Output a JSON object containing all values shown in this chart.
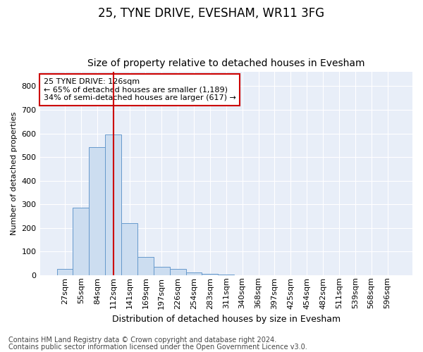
{
  "title1": "25, TYNE DRIVE, EVESHAM, WR11 3FG",
  "title2": "Size of property relative to detached houses in Evesham",
  "xlabel": "Distribution of detached houses by size in Evesham",
  "ylabel": "Number of detached properties",
  "bar_labels": [
    "27sqm",
    "55sqm",
    "84sqm",
    "112sqm",
    "141sqm",
    "169sqm",
    "197sqm",
    "226sqm",
    "254sqm",
    "283sqm",
    "311sqm",
    "340sqm",
    "368sqm",
    "397sqm",
    "425sqm",
    "454sqm",
    "482sqm",
    "511sqm",
    "539sqm",
    "568sqm",
    "596sqm"
  ],
  "bar_values": [
    25,
    285,
    543,
    597,
    220,
    78,
    35,
    25,
    12,
    6,
    3,
    0,
    0,
    0,
    0,
    0,
    0,
    0,
    0,
    0,
    0
  ],
  "bar_color": "#ccddf0",
  "bar_edgecolor": "#6699cc",
  "vline_index": 3.5,
  "annotation_text": "25 TYNE DRIVE: 126sqm\n← 65% of detached houses are smaller (1,189)\n34% of semi-detached houses are larger (617) →",
  "annotation_box_color": "#ffffff",
  "annotation_box_edgecolor": "#cc0000",
  "yticks": [
    0,
    100,
    200,
    300,
    400,
    500,
    600,
    700,
    800
  ],
  "ylim": [
    0,
    860
  ],
  "footnote1": "Contains HM Land Registry data © Crown copyright and database right 2024.",
  "footnote2": "Contains public sector information licensed under the Open Government Licence v3.0.",
  "bg_color": "#ffffff",
  "plot_bg_color": "#e8eef8",
  "grid_color": "#ffffff",
  "vline_color": "#cc0000",
  "title1_fontsize": 12,
  "title2_fontsize": 10,
  "xlabel_fontsize": 9,
  "ylabel_fontsize": 8,
  "tick_fontsize": 8,
  "annot_fontsize": 8,
  "footnote_fontsize": 7
}
